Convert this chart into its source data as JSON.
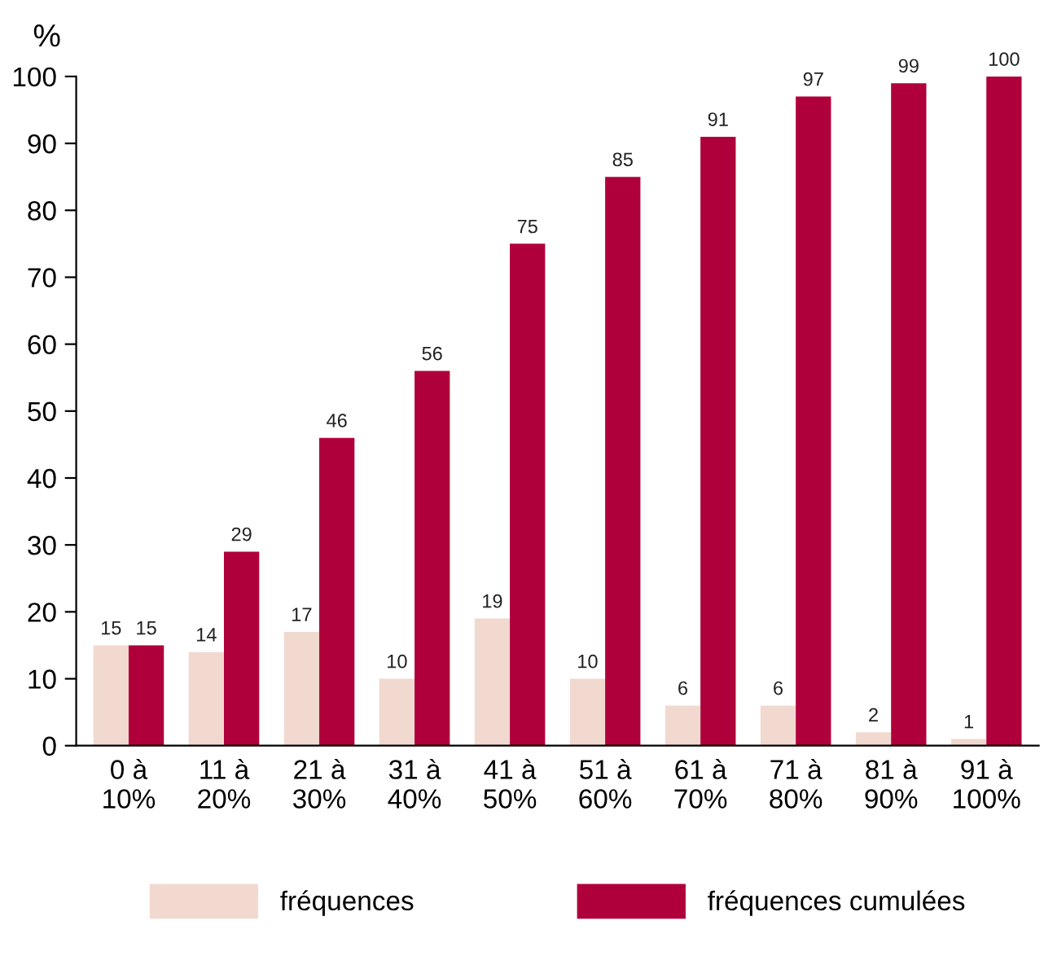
{
  "chart_data": {
    "type": "bar",
    "ylabel": "%",
    "categories": [
      "0 à\n10%",
      "11 à\n20%",
      "21 à\n30%",
      "31 à\n40%",
      "41 à\n50%",
      "51 à\n60%",
      "61 à\n70%",
      "71 à\n80%",
      "81 à\n90%",
      "91 à\n100%"
    ],
    "series": [
      {
        "name": "fréquences",
        "color": "#f2d9d0",
        "values": [
          15,
          14,
          17,
          10,
          19,
          10,
          6,
          6,
          2,
          1
        ]
      },
      {
        "name": "fréquences cumulées",
        "color": "#b0003b",
        "values": [
          15,
          29,
          46,
          56,
          75,
          85,
          91,
          97,
          99,
          100
        ]
      }
    ],
    "ylim": [
      0,
      100
    ],
    "yticks": [
      0,
      10,
      20,
      30,
      40,
      50,
      60,
      70,
      80,
      90,
      100
    ],
    "data_labels": true,
    "grid": false,
    "legend": "bottom"
  }
}
